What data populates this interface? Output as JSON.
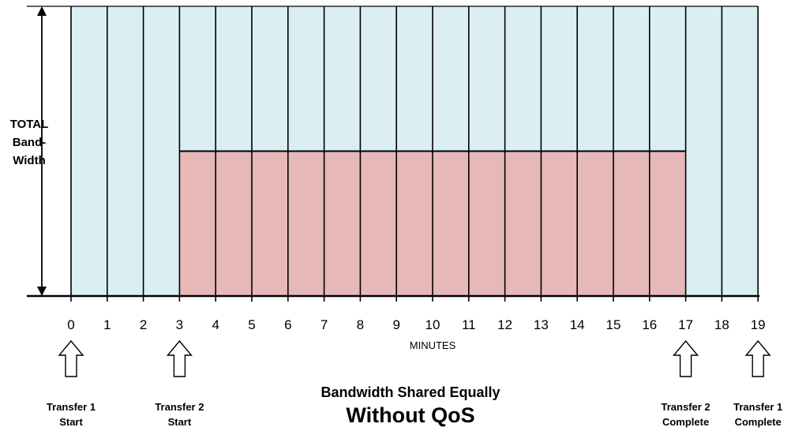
{
  "y_axis_label": [
    "TOTAL",
    "Band-",
    "Width"
  ],
  "x_axis_label": "MINUTES",
  "x_ticks": [
    "0",
    "1",
    "2",
    "3",
    "4",
    "5",
    "6",
    "7",
    "8",
    "9",
    "10",
    "11",
    "12",
    "13",
    "14",
    "15",
    "16",
    "17",
    "18",
    "19"
  ],
  "events": [
    {
      "minute": 0,
      "line1": "Transfer 1",
      "line2": "Start"
    },
    {
      "minute": 3,
      "line1": "Transfer 2",
      "line2": "Start"
    },
    {
      "minute": 17,
      "line1": "Transfer 2",
      "line2": "Complete"
    },
    {
      "minute": 19,
      "line1": "Transfer 1",
      "line2": "Complete"
    }
  ],
  "subtitle": "Bandwidth Shared Equally",
  "title": "Without QoS",
  "transfers": [
    {
      "start": 0,
      "end": 19,
      "color": "#DAEEF3"
    },
    {
      "start": 3,
      "end": 17,
      "share": 0.5,
      "color": "#E6B8B7"
    }
  ],
  "colors": {
    "transfer1": "#DAEEF3",
    "transfer2": "#E6B8B7",
    "line": "#000000",
    "arrow_fill": "#ffffff"
  }
}
